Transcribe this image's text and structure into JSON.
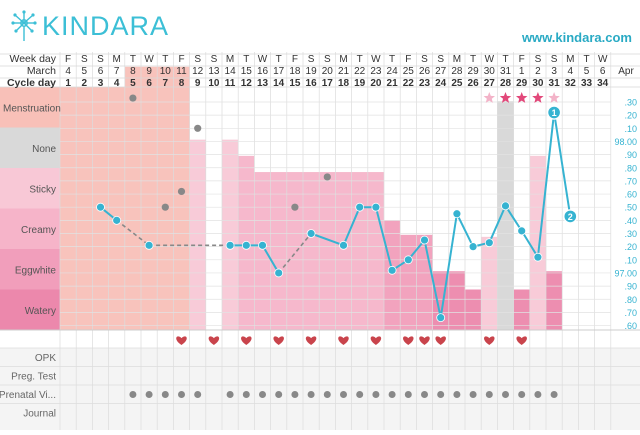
{
  "brand": {
    "name": "KINDARA",
    "url": "www.kindara.com",
    "accent": "#36b3d1"
  },
  "chart_data": {
    "type": "fertility-chart",
    "header_rows": [
      {
        "label": "Week day",
        "values": [
          "F",
          "S",
          "S",
          "M",
          "T",
          "W",
          "T",
          "F",
          "S",
          "S",
          "M",
          "T",
          "W",
          "T",
          "F",
          "S",
          "S",
          "M",
          "T",
          "W",
          "T",
          "F",
          "S",
          "S",
          "M",
          "T",
          "W",
          "T",
          "F",
          "S",
          "S",
          "M",
          "T",
          "W"
        ]
      },
      {
        "label": "March",
        "values": [
          "4",
          "5",
          "6",
          "7",
          "8",
          "9",
          "10",
          "11",
          "12",
          "13",
          "14",
          "15",
          "16",
          "17",
          "18",
          "19",
          "20",
          "21",
          "22",
          "23",
          "24",
          "25",
          "26",
          "27",
          "28",
          "29",
          "30",
          "31",
          "1",
          "2",
          "3",
          "4",
          "5",
          "6"
        ]
      },
      {
        "label": "Cycle day",
        "values": [
          "1",
          "2",
          "3",
          "4",
          "5",
          "6",
          "7",
          "8",
          "9",
          "10",
          "11",
          "12",
          "13",
          "14",
          "15",
          "16",
          "17",
          "18",
          "19",
          "20",
          "21",
          "22",
          "23",
          "24",
          "25",
          "26",
          "27",
          "28",
          "29",
          "30",
          "31",
          "32",
          "33",
          "34"
        ]
      }
    ],
    "next_month_label": "Apr",
    "fluid_categories": [
      "Menstruation",
      "None",
      "Sticky",
      "Creamy",
      "Eggwhite",
      "Watery"
    ],
    "category_colors": [
      "#f8c0b8",
      "#d9d9d9",
      "#f8c8d6",
      "#f6b4c9",
      "#f19ebb",
      "#ec88ac"
    ],
    "fluid_bars": [
      {
        "day": 1,
        "level": 6,
        "type": "menstruation"
      },
      {
        "day": 2,
        "level": 6,
        "type": "menstruation"
      },
      {
        "day": 3,
        "level": 6,
        "type": "menstruation"
      },
      {
        "day": 4,
        "level": 6,
        "type": "menstruation"
      },
      {
        "day": 5,
        "level": 6.5,
        "type": "menstruation"
      },
      {
        "day": 6,
        "level": 6.5,
        "type": "menstruation"
      },
      {
        "day": 7,
        "level": 6.5,
        "type": "menstruation"
      },
      {
        "day": 8,
        "level": 6.5,
        "type": "menstruation"
      },
      {
        "day": 9,
        "level": 4.7,
        "type": "sticky"
      },
      {
        "day": 11,
        "level": 4.7,
        "type": "sticky"
      },
      {
        "day": 12,
        "level": 4.3,
        "type": "creamy"
      },
      {
        "day": 13,
        "level": 3.9,
        "type": "creamy"
      },
      {
        "day": 14,
        "level": 3.9,
        "type": "creamy"
      },
      {
        "day": 15,
        "level": 3.9,
        "type": "creamy"
      },
      {
        "day": 16,
        "level": 3.9,
        "type": "creamy"
      },
      {
        "day": 17,
        "level": 3.9,
        "type": "creamy"
      },
      {
        "day": 18,
        "level": 3.9,
        "type": "creamy"
      },
      {
        "day": 19,
        "level": 3.9,
        "type": "creamy"
      },
      {
        "day": 20,
        "level": 3.9,
        "type": "creamy"
      },
      {
        "day": 21,
        "level": 2.7,
        "type": "eggwhite"
      },
      {
        "day": 22,
        "level": 2.35,
        "type": "eggwhite"
      },
      {
        "day": 23,
        "level": 2.35,
        "type": "eggwhite"
      },
      {
        "day": 24,
        "level": 1.45,
        "type": "watery"
      },
      {
        "day": 25,
        "level": 1.45,
        "type": "watery"
      },
      {
        "day": 26,
        "level": 1,
        "type": "watery"
      },
      {
        "day": 27,
        "level": 2.3,
        "type": "sticky"
      },
      {
        "day": 28,
        "level": 5.65,
        "type": "none"
      },
      {
        "day": 29,
        "level": 1,
        "type": "watery"
      },
      {
        "day": 30,
        "level": 4.3,
        "type": "sticky"
      },
      {
        "day": 31,
        "level": 1.45,
        "type": "watery"
      }
    ],
    "temperature_axis_labels": [
      ".30",
      ".20",
      ".10",
      "98.00",
      ".90",
      ".80",
      ".70",
      ".60",
      ".50",
      ".40",
      ".30",
      ".20",
      ".10",
      "97.00",
      ".90",
      ".80",
      ".70",
      ".60"
    ],
    "temperature_axis_f": [
      98.3,
      98.2,
      98.1,
      98.0,
      97.9,
      97.8,
      97.7,
      97.6,
      97.5,
      97.4,
      97.3,
      97.2,
      97.1,
      97.0,
      96.9,
      96.8,
      96.7,
      96.6
    ],
    "temperatures": [
      {
        "day": 3,
        "temp": 97.5
      },
      {
        "day": 4,
        "temp": 97.4
      },
      {
        "day": 6,
        "temp": 97.21
      },
      {
        "day": 11,
        "temp": 97.21
      },
      {
        "day": 12,
        "temp": 97.21
      },
      {
        "day": 13,
        "temp": 97.21
      },
      {
        "day": 14,
        "temp": 97.0
      },
      {
        "day": 16,
        "temp": 97.3
      },
      {
        "day": 18,
        "temp": 97.21
      },
      {
        "day": 19,
        "temp": 97.5
      },
      {
        "day": 20,
        "temp": 97.5
      },
      {
        "day": 21,
        "temp": 97.02
      },
      {
        "day": 22,
        "temp": 97.1
      },
      {
        "day": 23,
        "temp": 97.25
      },
      {
        "day": 24,
        "temp": 96.66
      },
      {
        "day": 25,
        "temp": 97.45
      },
      {
        "day": 26,
        "temp": 97.2
      },
      {
        "day": 27,
        "temp": 97.23
      },
      {
        "day": 28,
        "temp": 97.51
      },
      {
        "day": 29,
        "temp": 97.32
      },
      {
        "day": 30,
        "temp": 97.12
      },
      {
        "day": 31,
        "temp": 98.22
      },
      {
        "day": 32,
        "temp": 97.43
      }
    ],
    "dashed_segments": [
      [
        4,
        6
      ],
      [
        6,
        11
      ],
      [
        14,
        16
      ]
    ],
    "excluded_temps": [
      {
        "day": 5,
        "temp": 98.33
      },
      {
        "day": 9,
        "temp": 98.1
      },
      {
        "day": 7,
        "temp": 97.5
      },
      {
        "day": 8,
        "temp": 97.62
      },
      {
        "day": 15,
        "temp": 97.5
      },
      {
        "day": 17,
        "temp": 97.73
      }
    ],
    "markers": [
      {
        "day": 31,
        "label": "1"
      },
      {
        "day": 32,
        "label": "2"
      }
    ],
    "stars": [
      {
        "day": 27,
        "filled": false
      },
      {
        "day": 28,
        "filled": true
      },
      {
        "day": 29,
        "filled": true
      },
      {
        "day": 30,
        "filled": true
      },
      {
        "day": 31,
        "filled": false
      }
    ],
    "sex_days": [
      8,
      10,
      12,
      14,
      16,
      18,
      20,
      22,
      23,
      24,
      27,
      29
    ],
    "bottom_rows": [
      "OPK",
      "Preg. Test",
      "Prenatal Vi...",
      "Journal"
    ],
    "prenatal_days": [
      5,
      6,
      7,
      8,
      9,
      11,
      12,
      13,
      14,
      15,
      16,
      17,
      18,
      19,
      20,
      21,
      22,
      23,
      24,
      25,
      26,
      27,
      28,
      29,
      30,
      31
    ],
    "colors": {
      "line": "#36b3d1",
      "dashed": "#888888",
      "excluded": "#888888",
      "heart": "#c9444c",
      "star_filled": "#e2487a",
      "star_empty": "#f3b3c8",
      "axis_text": "#36b3d1"
    }
  }
}
